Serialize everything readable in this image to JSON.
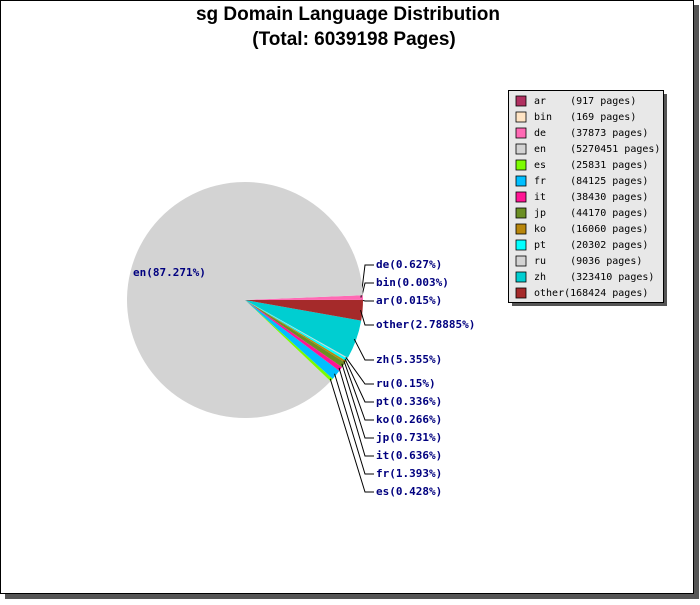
{
  "chart_data": {
    "type": "pie",
    "title": "sg Domain Language Distribution",
    "subtitle": "(Total: 6039198 Pages)",
    "categories": [
      "ar",
      "bin",
      "de",
      "en",
      "es",
      "fr",
      "it",
      "jp",
      "ko",
      "pt",
      "ru",
      "zh",
      "other"
    ],
    "values": [
      0.015,
      0.003,
      0.627,
      87.271,
      0.428,
      1.393,
      0.636,
      0.731,
      0.266,
      0.336,
      0.15,
      5.355,
      2.78885
    ],
    "value_labels": [
      "ar(0.015%)",
      "bin(0.003%)",
      "de(0.627%)",
      "en(87.271%)",
      "es(0.428%)",
      "fr(1.393%)",
      "it(0.636%)",
      "jp(0.731%)",
      "ko(0.266%)",
      "pt(0.336%)",
      "ru(0.15%)",
      "zh(5.355%)",
      "other(2.78885%)"
    ],
    "legend_labels": [
      "ar    (917 pages)",
      "bin   (169 pages)",
      "de    (37873 pages)",
      "en    (5270451 pages)",
      "es    (25831 pages)",
      "fr    (84125 pages)",
      "it    (38430 pages)",
      "jp    (44170 pages)",
      "ko    (16060 pages)",
      "pt    (20302 pages)",
      "ru    (9036 pages)",
      "zh    (323410 pages)",
      "other(168424 pages)"
    ],
    "colors": [
      "#b03060",
      "#ffe4c4",
      "#ff69b4",
      "#d3d3d3",
      "#7cfc00",
      "#00bfff",
      "#ff1493",
      "#6b8e23",
      "#b8860b",
      "#00ffff",
      "#d3d3d3",
      "#00ced1",
      "#a52a2a"
    ]
  }
}
